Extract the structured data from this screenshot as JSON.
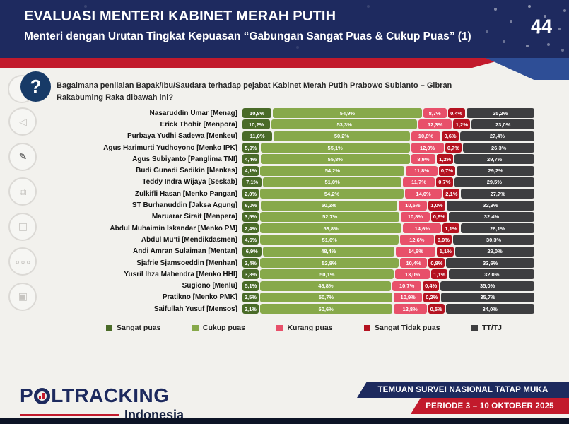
{
  "header": {
    "title": "EVALUASI MENTERI KABINET MERAH PUTIH",
    "subtitle": "Menteri dengan Urutan Tingkat Kepuasan “Gabungan Sangat Puas & Cukup Puas” (1)",
    "page_number": "44"
  },
  "question": {
    "text": "Bagaimana penilaian Bapak/Ibu/Saudara terhadap pejabat Kabinet Merah Putih Prabowo Subianto – Gibran Rakabuming Raka dibawah ini?"
  },
  "sidebar_icons": [
    {
      "name": "back-icon",
      "glyph": "◁",
      "dark": false
    },
    {
      "name": "pen-icon",
      "glyph": "✎",
      "dark": true
    },
    {
      "name": "slides-icon",
      "glyph": "⧉",
      "dark": false
    },
    {
      "name": "chart-board-icon",
      "glyph": "◫",
      "dark": false
    },
    {
      "name": "ellipsis-icon",
      "glyph": "∘∘∘",
      "dark": false
    },
    {
      "name": "monitor-icon",
      "glyph": "▣",
      "dark": false
    }
  ],
  "chart_data": {
    "type": "bar",
    "stacked": true,
    "orientation": "horizontal",
    "unit": "%",
    "value_format": "comma-decimal-percent",
    "series": [
      {
        "name": "Sangat puas",
        "color": "#4a6b28"
      },
      {
        "name": "Cukup puas",
        "color": "#87a94a"
      },
      {
        "name": "Kurang puas",
        "color": "#e8506a"
      },
      {
        "name": "Sangat Tidak puas",
        "color": "#b41220"
      },
      {
        "name": "TT/TJ",
        "color": "#3e3e40"
      }
    ],
    "rows": [
      {
        "label": "Nasaruddin Umar [Menag]",
        "values": [
          10.8,
          54.9,
          8.7,
          0.4,
          25.2
        ]
      },
      {
        "label": "Erick Thohir [Menpora]",
        "values": [
          10.2,
          53.3,
          12.3,
          1.2,
          23.0
        ]
      },
      {
        "label": "Purbaya Yudhi Sadewa [Menkeu]",
        "values": [
          11.0,
          50.2,
          10.8,
          0.6,
          27.4
        ]
      },
      {
        "label": "Agus Harimurti Yudhoyono [Menko IPK]",
        "values": [
          5.9,
          55.1,
          12.0,
          0.7,
          26.3
        ]
      },
      {
        "label": "Agus Subiyanto [Panglima TNI]",
        "values": [
          4.4,
          55.8,
          8.9,
          1.2,
          29.7
        ]
      },
      {
        "label": "Budi Gunadi Sadikin [Menkes]",
        "values": [
          4.1,
          54.2,
          11.8,
          0.7,
          29.2
        ]
      },
      {
        "label": "Teddy Indra Wijaya [Seskab]",
        "values": [
          7.1,
          51.0,
          11.7,
          0.7,
          29.5
        ]
      },
      {
        "label": "Zulkifli Hasan [Menko Pangan]",
        "values": [
          2.0,
          54.2,
          14.0,
          2.1,
          27.7
        ]
      },
      {
        "label": "ST Burhanuddin [Jaksa Agung]",
        "values": [
          6.0,
          50.2,
          10.5,
          1.0,
          32.3
        ]
      },
      {
        "label": "Maruarar Sirait [Menpera]",
        "values": [
          3.5,
          52.7,
          10.8,
          0.6,
          32.4
        ]
      },
      {
        "label": "Abdul Muhaimin Iskandar [Menko PM]",
        "values": [
          2.4,
          53.8,
          14.6,
          1.1,
          28.1
        ]
      },
      {
        "label": "Abdul Mu’ti [Mendikdasmen]",
        "values": [
          4.6,
          51.6,
          12.6,
          0.9,
          30.3
        ]
      },
      {
        "label": "Andi Amran Sulaiman [Mentan]",
        "values": [
          6.9,
          48.4,
          14.6,
          1.1,
          29.0
        ]
      },
      {
        "label": "Sjafrie Sjamsoeddin [Menhan]",
        "values": [
          2.4,
          52.8,
          10.4,
          0.8,
          33.6
        ]
      },
      {
        "label": "Yusril Ihza Mahendra [Menko HHI]",
        "values": [
          3.8,
          50.1,
          13.0,
          1.1,
          32.0
        ]
      },
      {
        "label": "Sugiono [Menlu]",
        "values": [
          5.1,
          48.8,
          10.7,
          0.4,
          35.0
        ]
      },
      {
        "label": "Pratikno [Menko PMK]",
        "values": [
          2.5,
          50.7,
          10.9,
          0.2,
          35.7
        ]
      },
      {
        "label": "Saifullah Yusuf [Mensos]",
        "values": [
          2.1,
          50.6,
          12.8,
          0.5,
          34.0
        ]
      }
    ]
  },
  "footer": {
    "logo_main": "P_LTRACKING",
    "logo_left": "P",
    "logo_right": "LTRACKING",
    "logo_sub": "Indonesia",
    "banner_top": "TEMUAN SURVEI NASIONAL TATAP MUKA",
    "banner_bottom": "PERIODE 3 – 10 OKTOBER 2025"
  }
}
